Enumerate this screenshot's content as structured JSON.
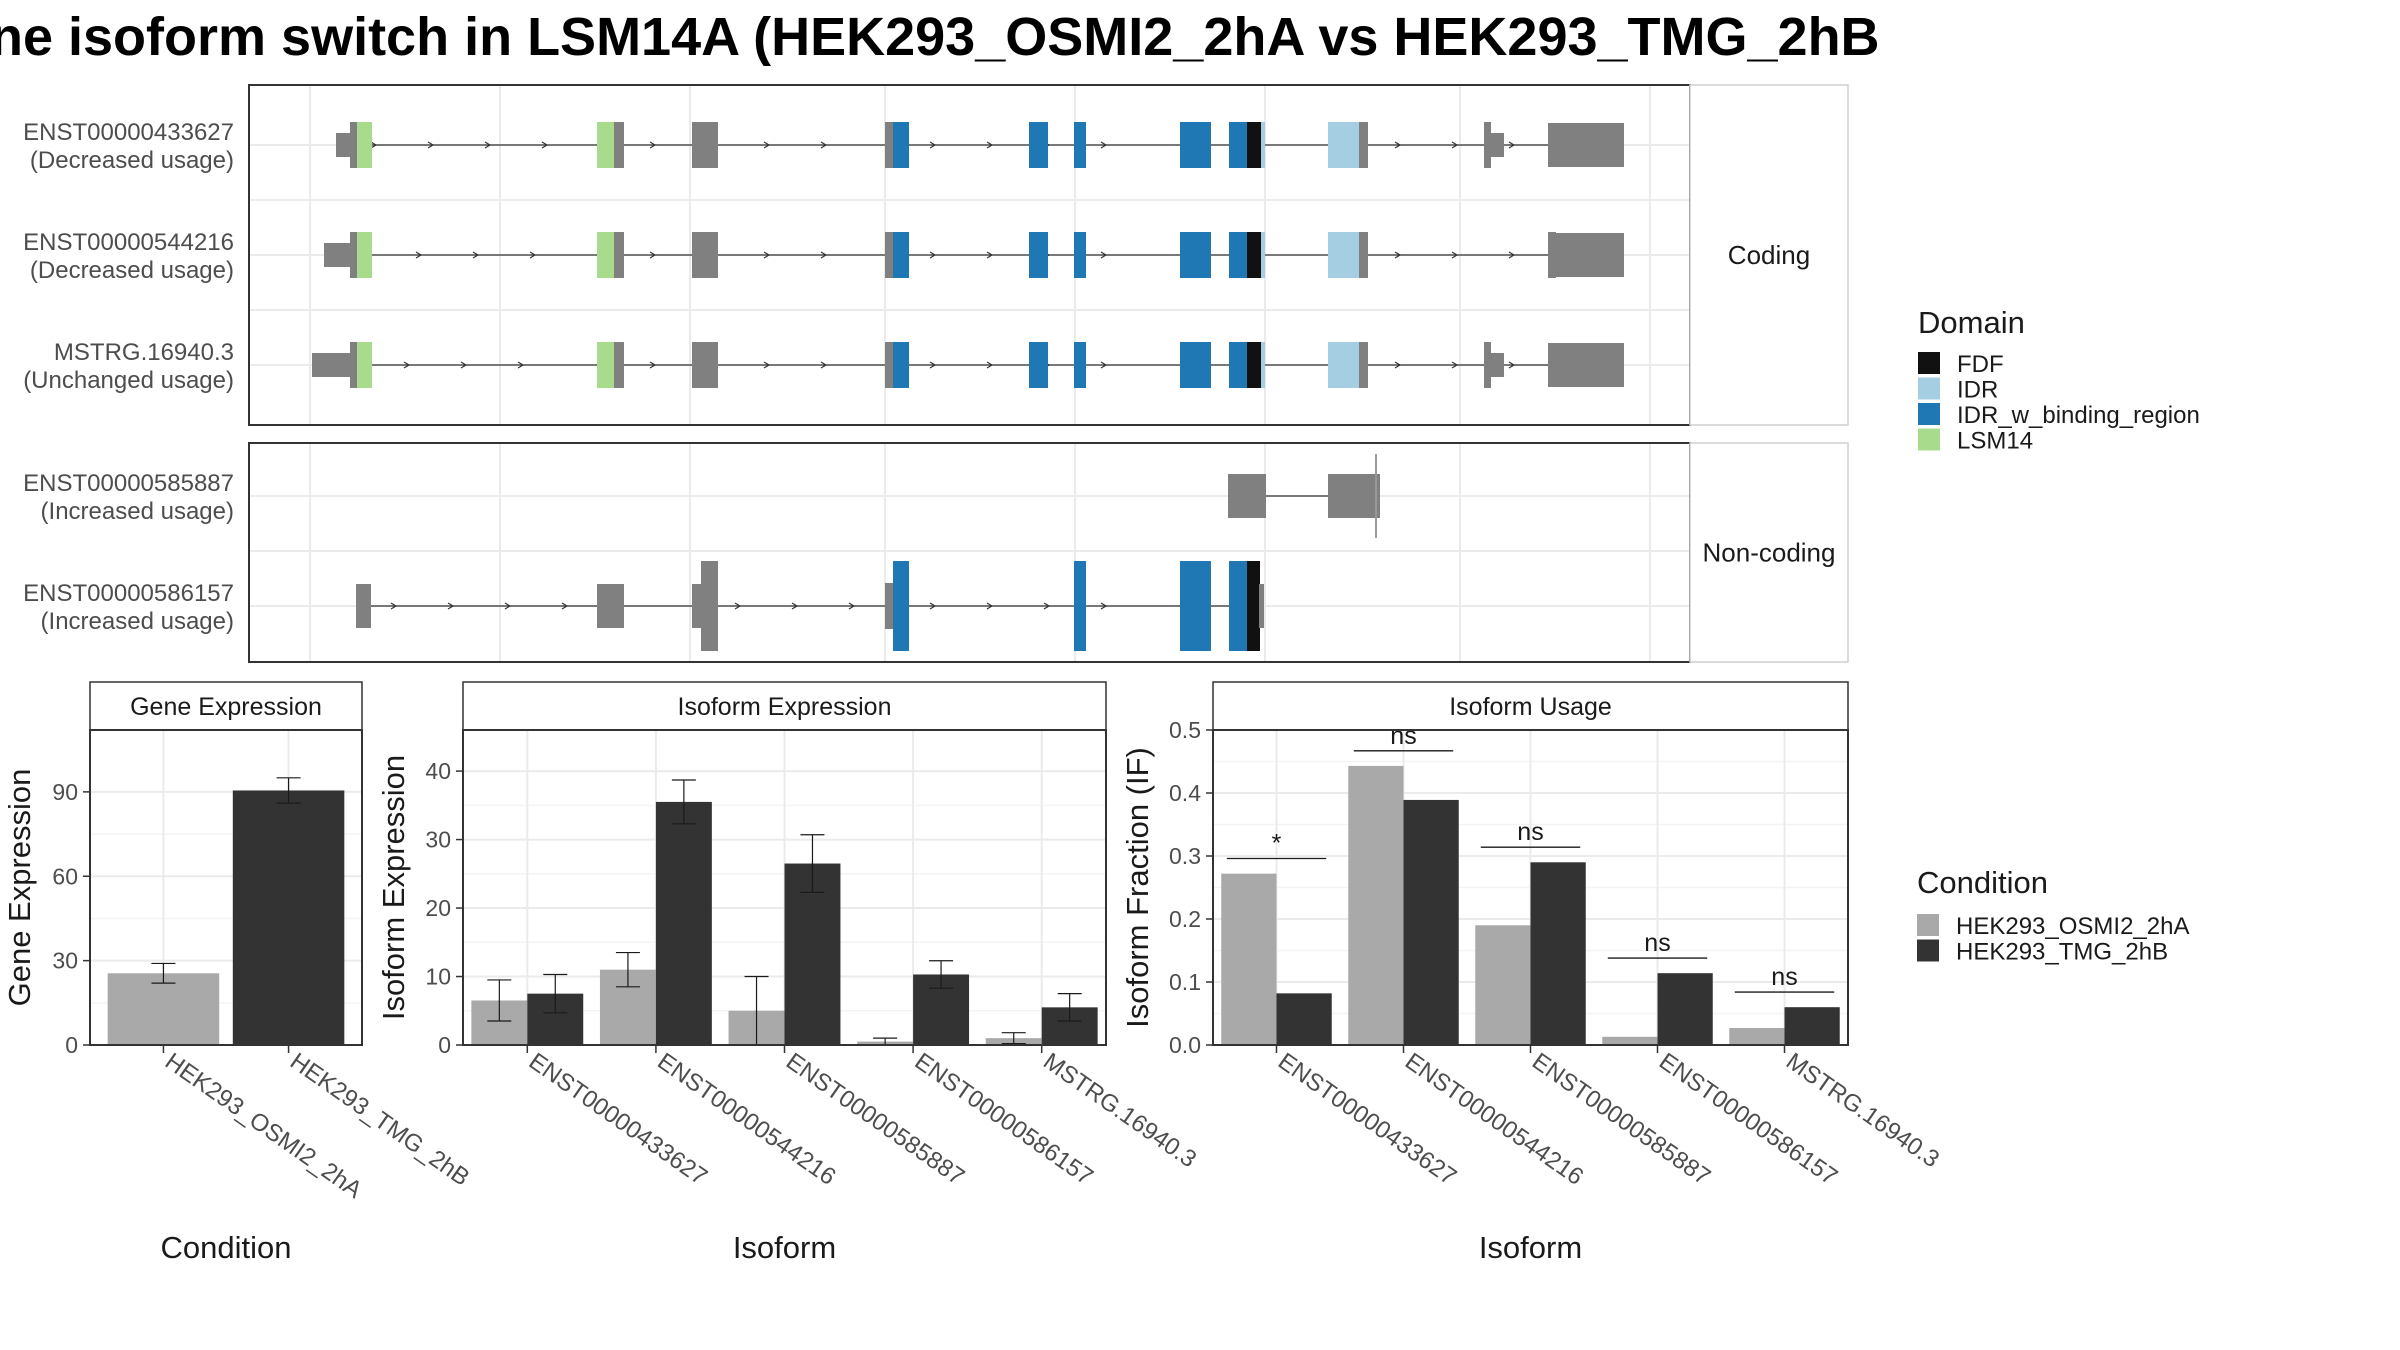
{
  "title": "ne isoform switch in LSM14A (HEK293_OSMI2_2hA vs HEK293_TMG_2hB",
  "colors": {
    "exon": "#808080",
    "FDF": "#111111",
    "IDR": "#a6cee3",
    "IDR_w_binding_region": "#1f78b4",
    "LSM14": "#a8dc8c",
    "cond1": "#a9a9a9",
    "cond2": "#333333"
  },
  "chart_data": [
    {
      "type": "diagram",
      "name": "isoform-structures",
      "panels": [
        {
          "label": "Coding",
          "transcripts": [
            {
              "name": "ENST00000433627",
              "usage": "(Decreased usage)"
            },
            {
              "name": "ENST00000544216",
              "usage": "(Decreased usage)"
            },
            {
              "name": "MSTRG.16940.3",
              "usage": "(Unchanged usage)"
            }
          ]
        },
        {
          "label": "Non-coding",
          "transcripts": [
            {
              "name": "ENST00000585887",
              "usage": "(Increased usage)"
            },
            {
              "name": "ENST00000586157",
              "usage": "(Increased usage)"
            }
          ]
        }
      ],
      "legend": {
        "title": "Domain",
        "entries": [
          "FDF",
          "IDR",
          "IDR_w_binding_region",
          "LSM14"
        ]
      }
    },
    {
      "type": "bar",
      "title": "Gene Expression",
      "xlabel": "Condition",
      "ylabel": "Gene Expression",
      "ylim": [
        0,
        112
      ],
      "yticks": [
        "0",
        "30",
        "60",
        "90"
      ],
      "categories": [
        "HEK293_OSMI2_2hA",
        "HEK293_TMG_2hB"
      ],
      "values": [
        25.5,
        90.5
      ],
      "errors": [
        3.5,
        4.5
      ]
    },
    {
      "type": "bar",
      "title": "Isoform Expression",
      "xlabel": "Isoform",
      "ylabel": "Isoform Expression",
      "ylim": [
        0,
        46
      ],
      "yticks": [
        "0",
        "10",
        "20",
        "30",
        "40"
      ],
      "categories": [
        "ENST00000433627",
        "ENST00000544216",
        "ENST00000585887",
        "ENST00000586157",
        "MSTRG.16940.3"
      ],
      "series": [
        {
          "name": "HEK293_OSMI2_2hA",
          "values": [
            6.5,
            11.0,
            5.0,
            0.5,
            1.0
          ],
          "errors": [
            3.0,
            2.5,
            5.0,
            0.5,
            0.8
          ]
        },
        {
          "name": "HEK293_TMG_2hB",
          "values": [
            7.5,
            35.5,
            26.5,
            10.3,
            5.5
          ],
          "errors": [
            2.8,
            3.2,
            4.2,
            2.0,
            2.0
          ]
        }
      ]
    },
    {
      "type": "bar",
      "title": "Isoform Usage",
      "xlabel": "Isoform",
      "ylabel": "Isoform Fraction (IF)",
      "ylim": [
        0,
        0.5
      ],
      "yticks": [
        "0.0",
        "0.1",
        "0.2",
        "0.3",
        "0.4",
        "0.5"
      ],
      "categories": [
        "ENST00000433627",
        "ENST00000544216",
        "ENST00000585887",
        "ENST00000586157",
        "MSTRG.16940.3"
      ],
      "series": [
        {
          "name": "HEK293_OSMI2_2hA",
          "values": [
            0.272,
            0.443,
            0.19,
            0.013,
            0.027
          ]
        },
        {
          "name": "HEK293_TMG_2hB",
          "values": [
            0.082,
            0.389,
            0.29,
            0.114,
            0.06
          ]
        }
      ],
      "significance": [
        "*",
        "ns",
        "ns",
        "ns",
        "ns"
      ]
    }
  ],
  "condition_legend": {
    "title": "Condition",
    "entries": [
      "HEK293_OSMI2_2hA",
      "HEK293_TMG_2hB"
    ]
  }
}
